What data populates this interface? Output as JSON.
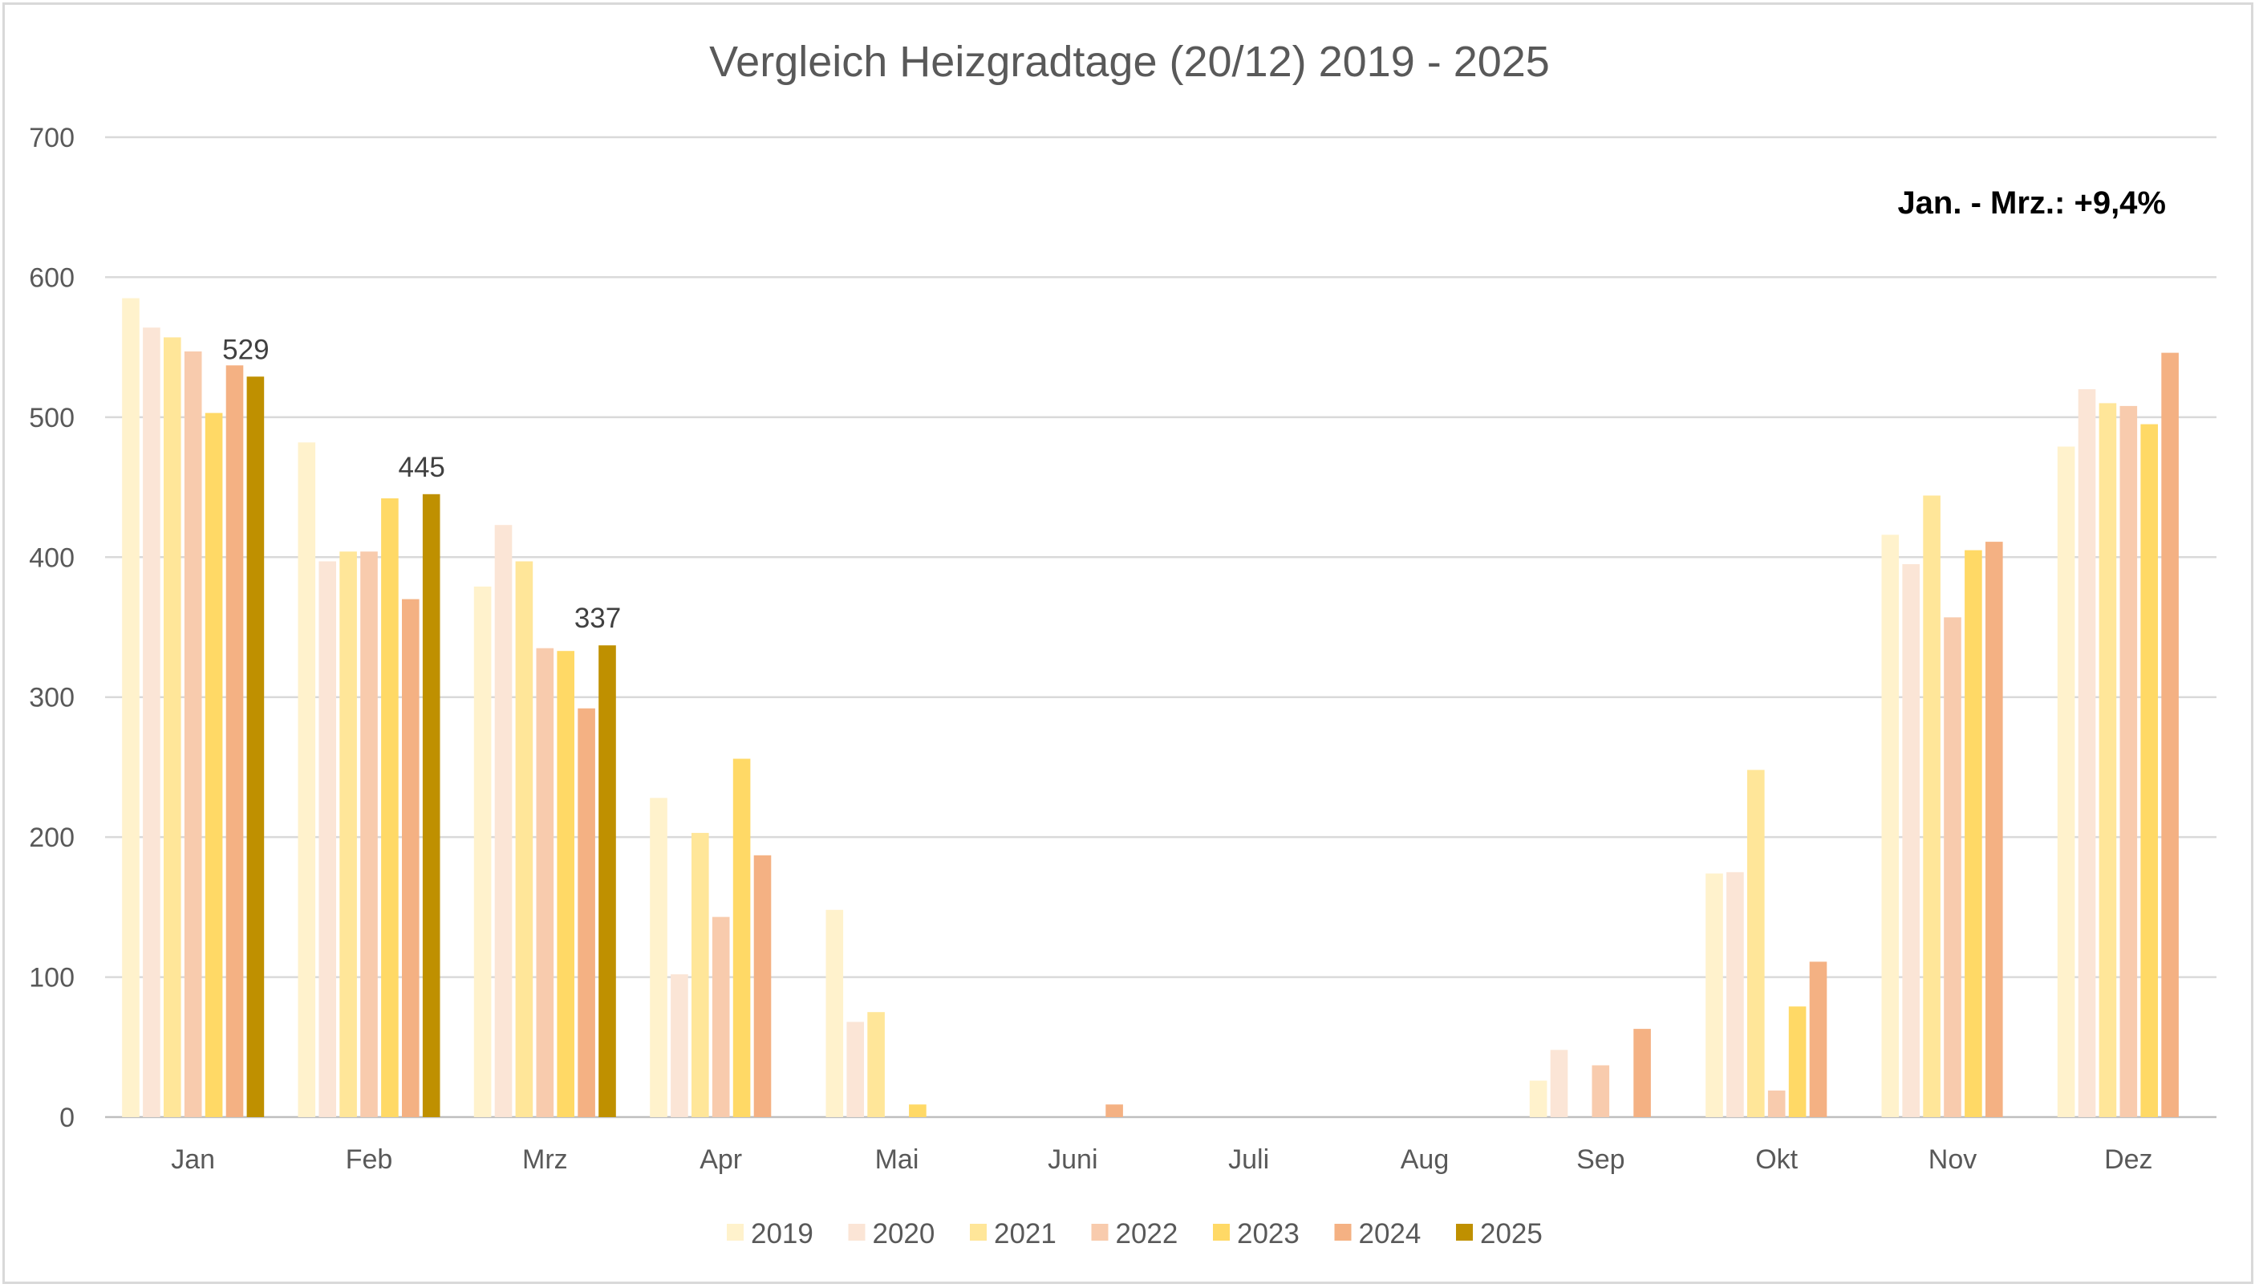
{
  "chart_data": {
    "type": "bar",
    "title": "Vergleich Heizgradtage (20/12) 2019 - 2025",
    "annotation": "Jan. - Mrz.: +9,4%",
    "xlabel": "",
    "ylabel": "",
    "ylim": [
      0,
      700
    ],
    "yticks": [
      "0",
      "100",
      "200",
      "300",
      "400",
      "500",
      "600",
      "700"
    ],
    "grid": true,
    "legend_position": "bottom",
    "categories": [
      "Jan",
      "Feb",
      "Mrz",
      "Apr",
      "Mai",
      "Juni",
      "Juli",
      "Aug",
      "Sep",
      "Okt",
      "Nov",
      "Dez"
    ],
    "series": [
      {
        "name": "2019",
        "color": "#fff2cc",
        "values": [
          585,
          482,
          379,
          228,
          148,
          0,
          0,
          0,
          26,
          174,
          416,
          479
        ]
      },
      {
        "name": "2020",
        "color": "#fbe5d6",
        "values": [
          564,
          397,
          423,
          102,
          68,
          0,
          0,
          0,
          48,
          175,
          395,
          520
        ]
      },
      {
        "name": "2021",
        "color": "#ffe699",
        "values": [
          557,
          404,
          397,
          203,
          75,
          0,
          0,
          0,
          0,
          248,
          444,
          510
        ]
      },
      {
        "name": "2022",
        "color": "#f8cbad",
        "values": [
          547,
          404,
          335,
          143,
          0,
          0,
          0,
          0,
          37,
          19,
          357,
          508
        ]
      },
      {
        "name": "2023",
        "color": "#ffd966",
        "values": [
          503,
          442,
          333,
          256,
          9,
          0,
          0,
          0,
          0,
          79,
          405,
          495
        ]
      },
      {
        "name": "2024",
        "color": "#f4b183",
        "values": [
          537,
          370,
          292,
          187,
          0,
          9,
          0,
          0,
          63,
          111,
          411,
          546
        ]
      },
      {
        "name": "2025",
        "color": "#bf9000",
        "values": [
          529,
          445,
          337,
          null,
          null,
          null,
          null,
          null,
          null,
          null,
          null,
          null
        ]
      }
    ],
    "data_labels": [
      {
        "series": "2025",
        "category": "Jan",
        "text": "529"
      },
      {
        "series": "2025",
        "category": "Feb",
        "text": "445"
      },
      {
        "series": "2025",
        "category": "Mrz",
        "text": "337"
      }
    ]
  }
}
